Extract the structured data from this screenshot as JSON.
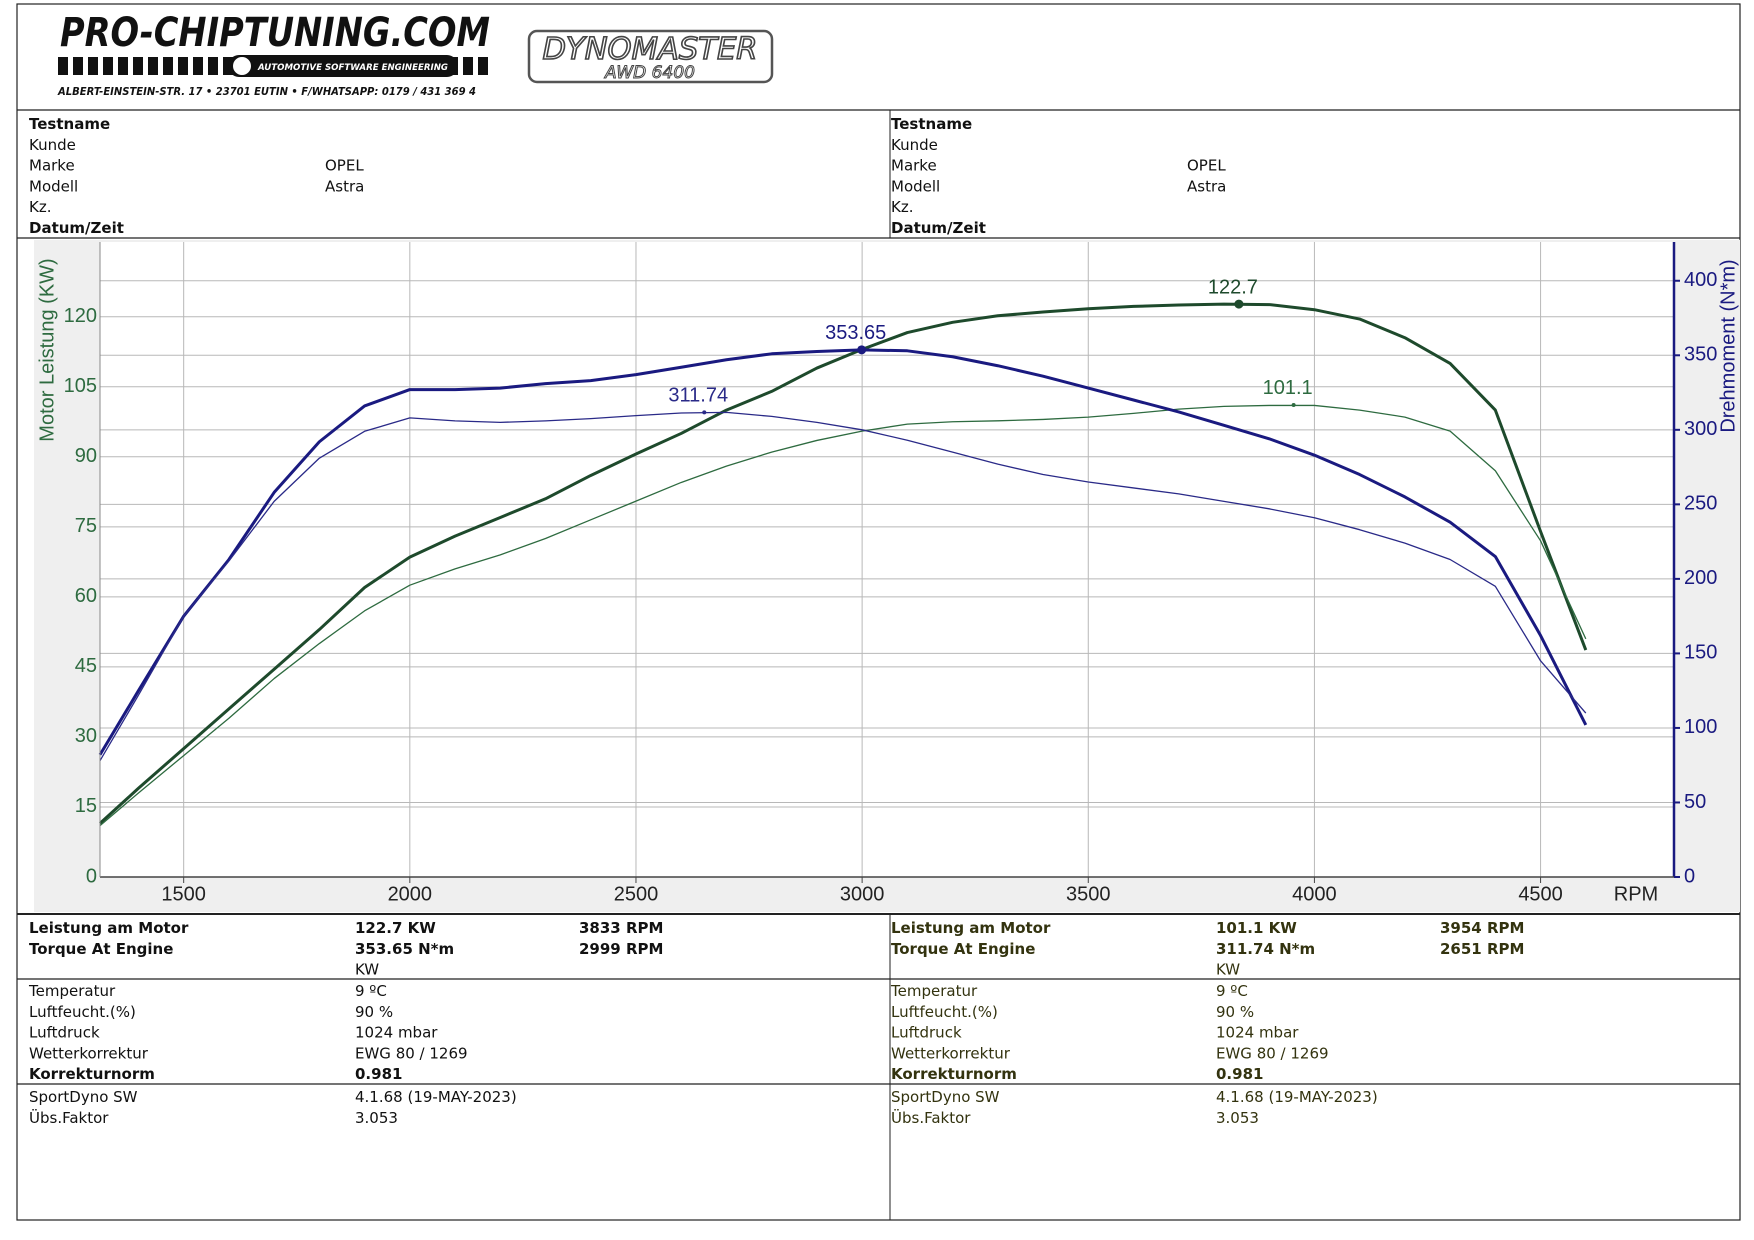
{
  "header": {
    "logo": "PRO-CHIPTUNING.COM",
    "tagline": "AUTOMOTIVE SOFTWARE ENGINEERING",
    "address": "ALBERT-EINSTEIN-STR. 17 • 23701 EUTIN • F/WHATSAPP: 0179 / 431 369 4",
    "brand": "DYNOMASTER",
    "model": "AWD 6400"
  },
  "info": [
    {
      "rows": [
        {
          "label": "Testname",
          "bold": true
        },
        {
          "label": "Kunde"
        },
        {
          "label": "Marke",
          "value": "OPEL"
        },
        {
          "label": "Modell",
          "value": "Astra"
        },
        {
          "label": "Kz."
        },
        {
          "label": "Datum/Zeit",
          "bold": true
        }
      ]
    },
    {
      "rows": [
        {
          "label": "Testname",
          "bold": true
        },
        {
          "label": "Kunde"
        },
        {
          "label": "Marke",
          "value": "OPEL"
        },
        {
          "label": "Modell",
          "value": "Astra"
        },
        {
          "label": "Kz."
        },
        {
          "label": "Datum/Zeit",
          "bold": true
        }
      ]
    }
  ],
  "chart_data": {
    "type": "line",
    "ylabel": "Motor Leistung (KW)",
    "y2label": "Drehmoment (N*m)",
    "xlabel": "RPM",
    "xlim": [
      1315,
      4795
    ],
    "xticks": [
      1500,
      2000,
      2500,
      3000,
      3500,
      4000,
      4500
    ],
    "ylim": [
      0,
      136
    ],
    "yticks": [
      0,
      15,
      30,
      45,
      60,
      75,
      90,
      105,
      120
    ],
    "y2lim": [
      0,
      426
    ],
    "y2ticks": [
      0,
      50,
      100,
      150,
      200,
      250,
      300,
      350,
      400
    ],
    "grid": true,
    "ycolor": "#2e6b40",
    "y2color": "#1a1a80",
    "x": [
      1315,
      1400,
      1500,
      1600,
      1700,
      1800,
      1900,
      2000,
      2100,
      2200,
      2300,
      2400,
      2500,
      2600,
      2700,
      2800,
      2900,
      3000,
      3100,
      3200,
      3300,
      3400,
      3500,
      3600,
      3700,
      3800,
      3900,
      4000,
      4100,
      4200,
      4300,
      4400,
      4500,
      4600
    ],
    "series": [
      {
        "color": "#1e4a2c",
        "width": 3,
        "axis": "y",
        "peak": {
          "x": 3833,
          "value": 122.7
        },
        "values": [
          11.5,
          19,
          27.5,
          36,
          44.5,
          53,
          62,
          68.5,
          73,
          77,
          81,
          86,
          90.6,
          95,
          100,
          104,
          109,
          113,
          116.6,
          118.8,
          120.2,
          121,
          121.7,
          122.2,
          122.5,
          122.7,
          122.6,
          121.5,
          119.5,
          115.5,
          110,
          100,
          74,
          48.6
        ]
      },
      {
        "color": "#2e6b40",
        "width": 1.3,
        "axis": "y",
        "peak": {
          "x": 3954,
          "value": 101.1
        },
        "values": [
          11,
          18,
          26,
          34,
          42.5,
          50,
          57,
          62.5,
          66,
          69,
          72.5,
          76.5,
          80.5,
          84.5,
          88,
          91,
          93.5,
          95.5,
          97,
          97.5,
          97.7,
          98,
          98.5,
          99.3,
          100.2,
          100.8,
          101,
          101,
          100,
          98.5,
          95.5,
          87,
          72,
          51
        ]
      },
      {
        "color": "#1a1a80",
        "width": 3,
        "axis": "y2",
        "peak": {
          "x": 2999,
          "value": 353.65
        },
        "values": [
          82,
          125,
          175,
          213,
          258,
          292,
          316,
          327,
          327,
          328,
          331,
          333,
          337,
          342,
          347,
          351,
          352.5,
          353.65,
          353,
          349,
          343,
          336,
          328,
          320,
          312,
          303,
          294,
          283,
          270,
          255,
          238,
          215,
          162,
          102
        ]
      },
      {
        "color": "#2a2a88",
        "width": 1.3,
        "axis": "y2",
        "peak": {
          "x": 2651,
          "value": 311.74
        },
        "values": [
          78,
          122,
          175,
          212,
          252,
          281,
          299,
          308,
          306,
          305,
          306,
          307.5,
          309.5,
          311.3,
          311.7,
          309,
          305,
          300,
          293,
          285,
          277,
          270,
          265,
          261,
          257,
          252,
          247,
          241,
          233,
          224,
          213,
          195,
          145,
          110
        ]
      }
    ]
  },
  "results": [
    {
      "color": "#111111",
      "sections": [
        [
          {
            "label": "Leistung am Motor",
            "value": "122.7 KW",
            "rpm": "3833 RPM",
            "bold": true
          },
          {
            "label": "Torque At Engine",
            "value": "353.65 N*m",
            "rpm": "2999 RPM",
            "bold": true
          },
          {
            "value": "KW"
          }
        ],
        [
          {
            "label": "Temperatur",
            "value": "9 ºC"
          },
          {
            "label": "Luftfeucht.(%)",
            "value": "90 %"
          },
          {
            "label": "Luftdruck",
            "value": "1024 mbar"
          },
          {
            "label": "Wetterkorrektur",
            "value": "EWG 80 / 1269"
          },
          {
            "label": "Korrekturnorm",
            "value": "0.981",
            "bold": true
          }
        ],
        [
          {
            "label": "SportDyno SW",
            "value": "4.1.68 (19-MAY-2023)"
          },
          {
            "label": "Übs.Faktor",
            "value": "3.053"
          }
        ]
      ]
    },
    {
      "color": "#33330f",
      "sections": [
        [
          {
            "label": "Leistung am Motor",
            "value": "101.1 KW",
            "rpm": "3954 RPM",
            "bold": true
          },
          {
            "label": "Torque At Engine",
            "value": "311.74 N*m",
            "rpm": "2651 RPM",
            "bold": true
          },
          {
            "value": "KW"
          }
        ],
        [
          {
            "label": "Temperatur",
            "value": "9 ºC"
          },
          {
            "label": "Luftfeucht.(%)",
            "value": "90 %"
          },
          {
            "label": "Luftdruck",
            "value": "1024 mbar"
          },
          {
            "label": "Wetterkorrektur",
            "value": "EWG 80 / 1269"
          },
          {
            "label": "Korrekturnorm",
            "value": "0.981",
            "bold": true
          }
        ],
        [
          {
            "label": "SportDyno SW",
            "value": "4.1.68 (19-MAY-2023)"
          },
          {
            "label": "Übs.Faktor",
            "value": "3.053"
          }
        ]
      ]
    }
  ]
}
